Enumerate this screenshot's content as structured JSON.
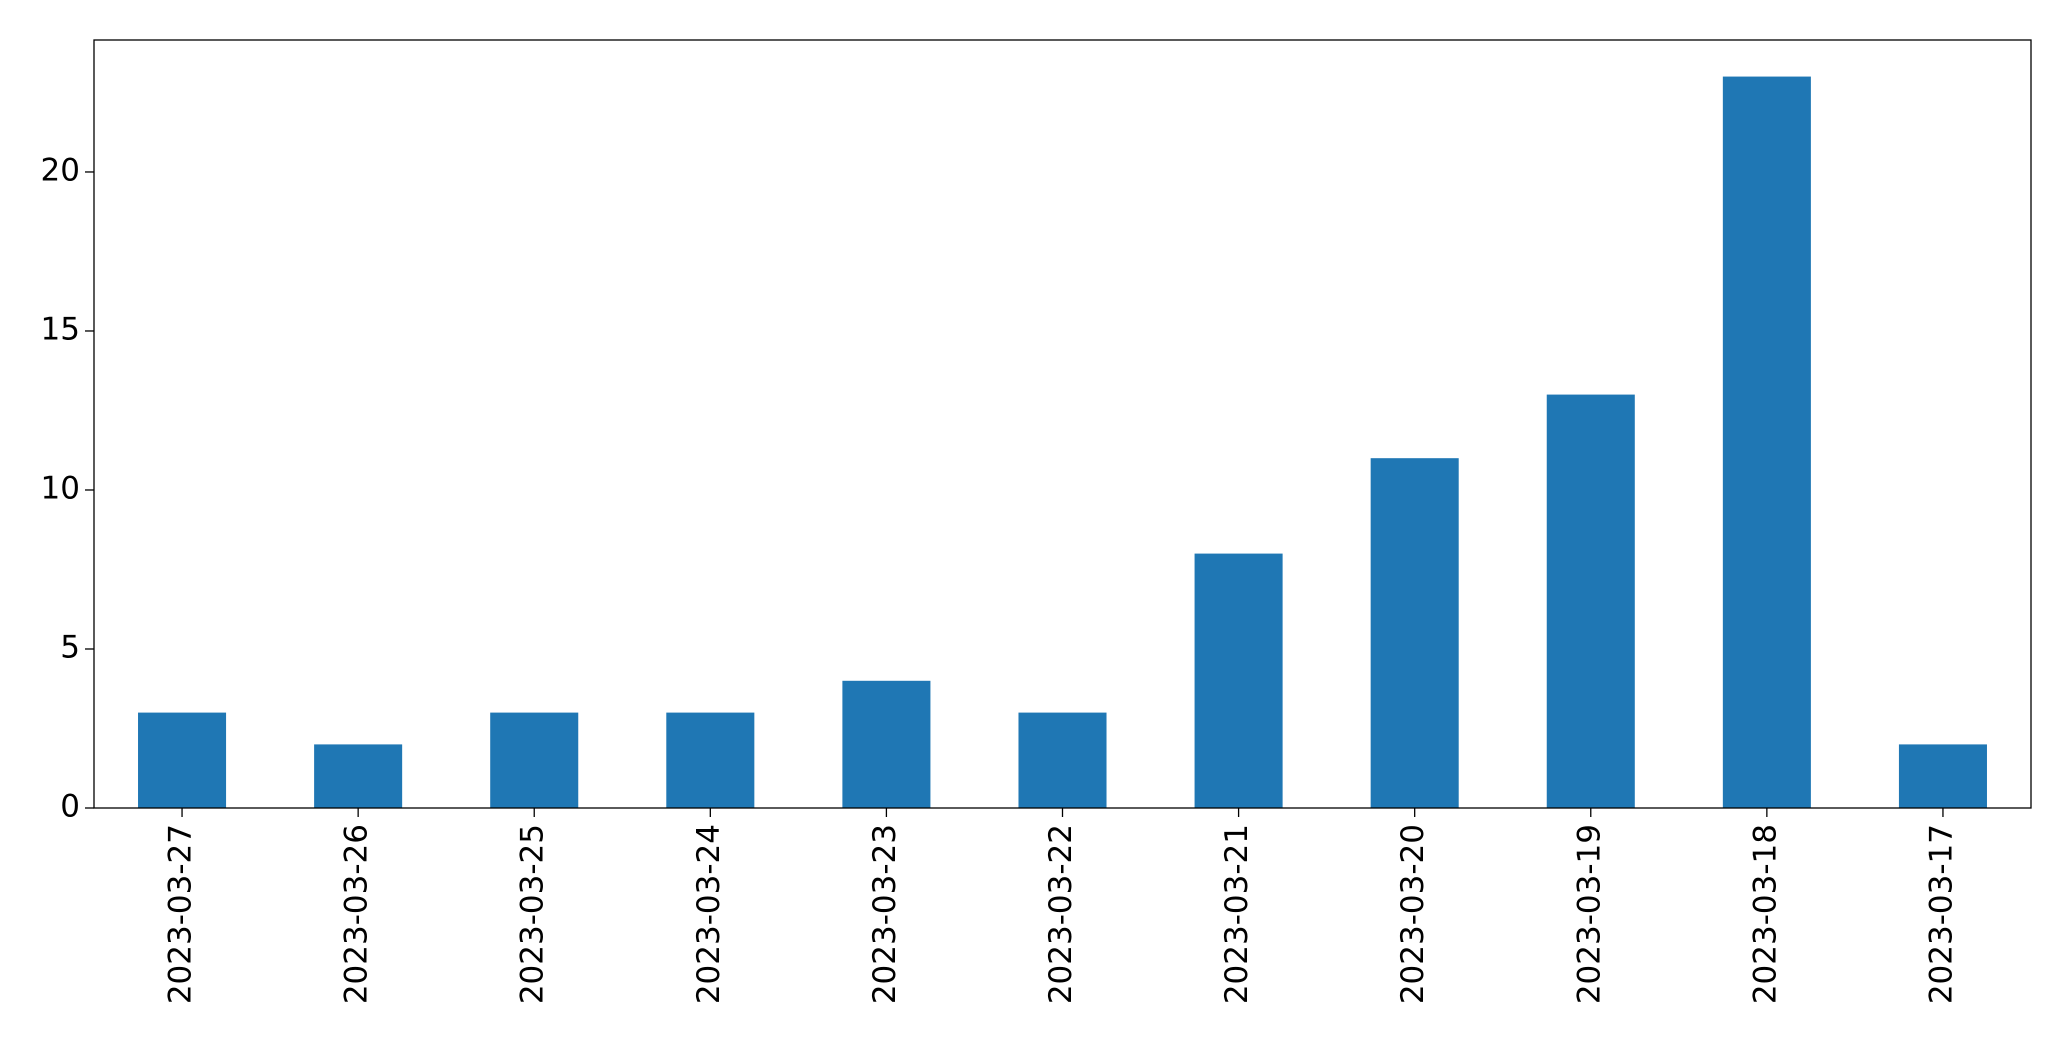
{
  "chart_data": {
    "type": "bar",
    "categories": [
      "2023-03-27",
      "2023-03-26",
      "2023-03-25",
      "2023-03-24",
      "2023-03-23",
      "2023-03-22",
      "2023-03-21",
      "2023-03-20",
      "2023-03-19",
      "2023-03-18",
      "2023-03-17"
    ],
    "values": [
      3,
      2,
      3,
      3,
      4,
      3,
      8,
      11,
      13,
      23,
      2
    ],
    "color": "#1f77b4",
    "ylim": [
      0,
      24.15
    ],
    "yticks": [
      0,
      5,
      10,
      15,
      20
    ],
    "grid": false
  }
}
